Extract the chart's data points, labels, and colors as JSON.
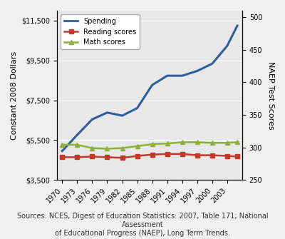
{
  "years": [
    1970,
    1973,
    1976,
    1979,
    1982,
    1985,
    1988,
    1991,
    1994,
    1997,
    2000,
    2003,
    2005
  ],
  "spending": [
    4955,
    5765,
    6545,
    6885,
    6730,
    7110,
    8270,
    8735,
    8735,
    8975,
    9340,
    10240,
    11245
  ],
  "reading_scores": [
    285,
    285,
    286,
    285,
    284,
    287,
    289,
    290,
    290,
    288,
    288,
    287,
    286
  ],
  "math_scores": [
    304,
    304,
    299,
    298,
    299,
    302,
    305,
    306,
    308,
    308,
    307,
    307,
    308
  ],
  "spending_color": "#2E5F9A",
  "reading_color": "#C0392B",
  "math_color": "#8DB03B",
  "left_ylim": [
    3500,
    12000
  ],
  "right_ylim": [
    250,
    510
  ],
  "left_yticks": [
    3500,
    5500,
    7500,
    9500,
    11500
  ],
  "right_yticks": [
    250,
    300,
    350,
    400,
    450,
    500
  ],
  "left_ylabel": "Constant 2008 Dollars",
  "right_ylabel": "NAEP Test Scores",
  "xlabel_ticks": [
    1970,
    1973,
    1976,
    1979,
    1982,
    1985,
    1988,
    1991,
    1994,
    1997,
    2000,
    2003
  ],
  "source_text": "Sources: NCES, Digest of Education Statistics: 2007, Table 171; National Assessment\nof Educational Progress (NAEP), Long Term Trends.",
  "background_color": "#E8E8E8",
  "legend_labels": [
    "Spending",
    "Reading scores",
    "Math scores"
  ],
  "title_fontsize": 9,
  "axis_fontsize": 8,
  "tick_fontsize": 7,
  "source_fontsize": 7
}
